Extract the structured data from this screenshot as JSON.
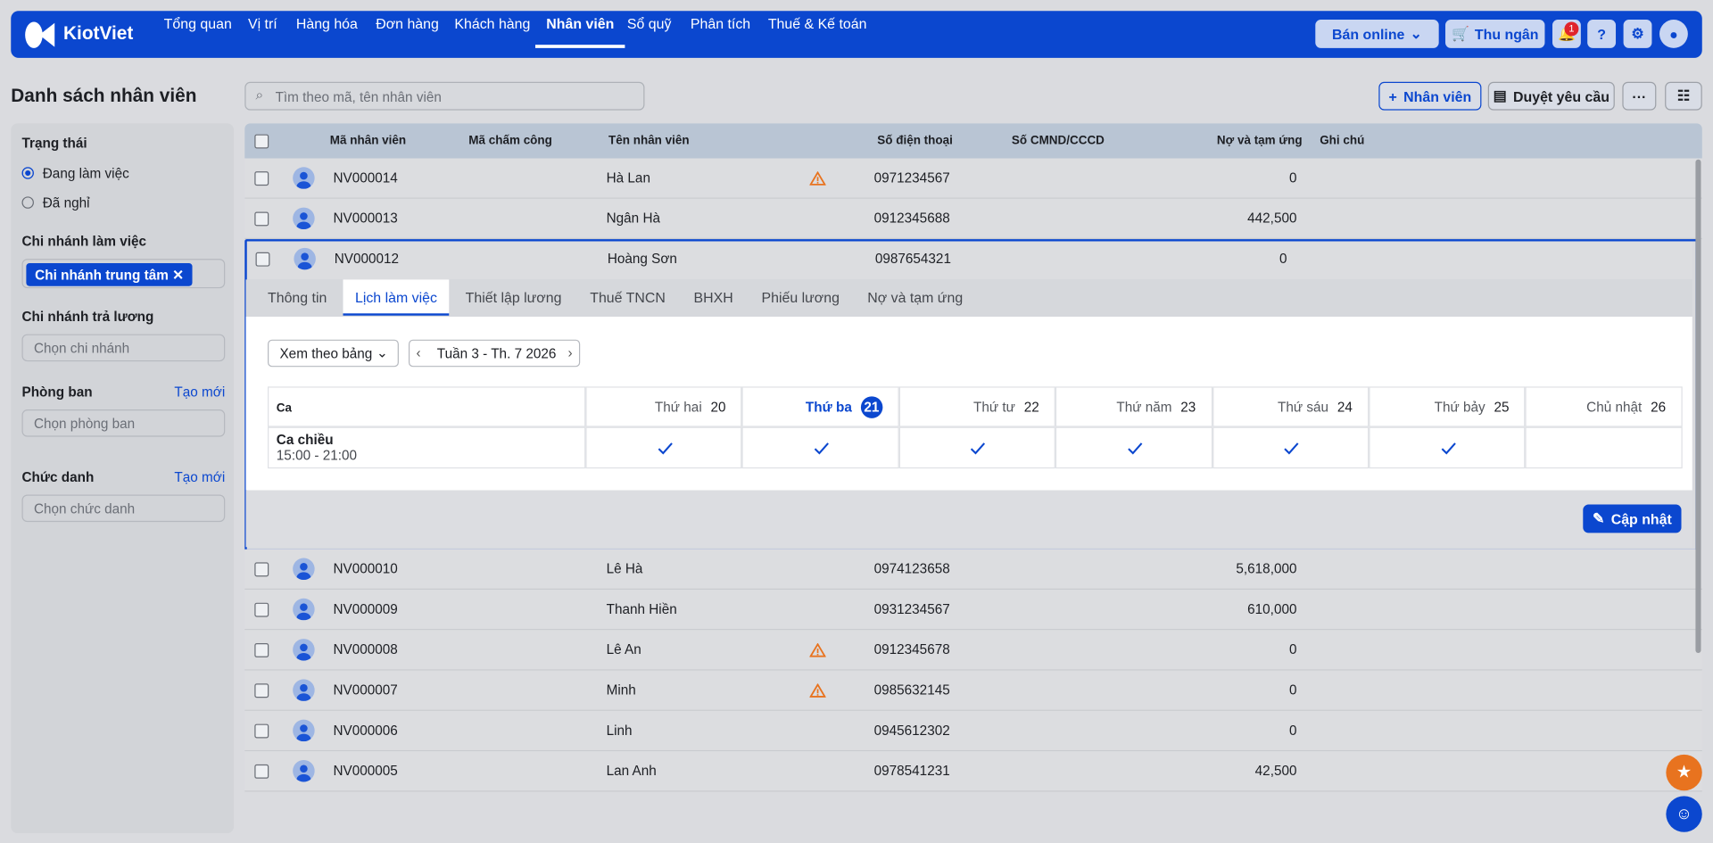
{
  "brand": "KiotViet",
  "nav": [
    "Tổng quan",
    "Vị trí",
    "Hàng hóa",
    "Đơn hàng",
    "Khách hàng",
    "Nhân viên",
    "Sổ quỹ",
    "Phân tích",
    "Thuế & Kế toán"
  ],
  "nav_active": 5,
  "top_actions": {
    "online": "Bán online",
    "cashier": "Thu ngân",
    "notifications": "1"
  },
  "page_title": "Danh sách nhân viên",
  "search_placeholder": "Tìm theo mã, tên nhân viên",
  "buttons": {
    "add": "Nhân viên",
    "approve": "Duyệt yêu cầu"
  },
  "filters": {
    "status": {
      "title": "Trạng thái",
      "options": [
        "Đang làm việc",
        "Đã nghỉ"
      ],
      "selected": 0
    },
    "branch": {
      "title": "Chi nhánh làm việc",
      "tag": "Chi nhánh trung tâm"
    },
    "pay_branch": {
      "title": "Chi nhánh trả lương",
      "placeholder": "Chọn chi nhánh"
    },
    "department": {
      "title": "Phòng ban",
      "link": "Tạo mới",
      "placeholder": "Chọn phòng ban"
    },
    "position": {
      "title": "Chức danh",
      "link": "Tạo mới",
      "placeholder": "Chọn chức danh"
    }
  },
  "table": {
    "headers": [
      "Mã nhân viên",
      "Mã chấm công",
      "Tên nhân viên",
      "Số điện thoại",
      "Số CMND/CCCD",
      "Nợ và tạm ứng",
      "Ghi chú"
    ],
    "rows": [
      {
        "code": "NV000014",
        "name": "Hà Lan",
        "warning": true,
        "phone": "0971234567",
        "debt": "0"
      },
      {
        "code": "NV000013",
        "name": "Ngân Hà",
        "warning": false,
        "phone": "0912345688",
        "debt": "442,500"
      },
      {
        "code": "NV000012",
        "name": "Hoàng Sơn",
        "warning": false,
        "phone": "0987654321",
        "debt": "0"
      },
      {
        "code": "NV000010",
        "name": "Lê Hà",
        "warning": false,
        "phone": "0974123658",
        "debt": "5,618,000"
      },
      {
        "code": "NV000009",
        "name": "Thanh Hiền",
        "warning": false,
        "phone": "0931234567",
        "debt": "610,000"
      },
      {
        "code": "NV000008",
        "name": "Lê An",
        "warning": true,
        "phone": "0912345678",
        "debt": "0"
      },
      {
        "code": "NV000007",
        "name": "Minh",
        "warning": true,
        "phone": "0985632145",
        "debt": "0"
      },
      {
        "code": "NV000006",
        "name": "Linh",
        "warning": false,
        "phone": "0945612302",
        "debt": "0"
      },
      {
        "code": "NV000005",
        "name": "Lan Anh",
        "warning": false,
        "phone": "0978541231",
        "debt": "42,500"
      }
    ],
    "expanded_row": 2
  },
  "detail": {
    "tabs": [
      "Thông tin",
      "Lịch làm việc",
      "Thiết lập lương",
      "Thuế TNCN",
      "BHXH",
      "Phiếu lương",
      "Nợ và tạm ứng"
    ],
    "active_tab": 1,
    "view": "Xem theo bảng",
    "week": "Tuần 3 - Th. 7 2026",
    "schedule": {
      "corner": "Ca",
      "today": 1,
      "days": [
        {
          "name": "Thứ hai",
          "date": "20"
        },
        {
          "name": "Thứ ba",
          "date": "21"
        },
        {
          "name": "Thứ tư",
          "date": "22"
        },
        {
          "name": "Thứ năm",
          "date": "23"
        },
        {
          "name": "Thứ sáu",
          "date": "24"
        },
        {
          "name": "Thứ bảy",
          "date": "25"
        },
        {
          "name": "Chủ nhật",
          "date": "26"
        }
      ],
      "shifts": [
        {
          "name": "Ca chiều",
          "time": "15:00 - 21:00",
          "days": [
            true,
            true,
            true,
            true,
            true,
            true,
            false
          ]
        }
      ]
    },
    "update": "Cập nhật"
  }
}
